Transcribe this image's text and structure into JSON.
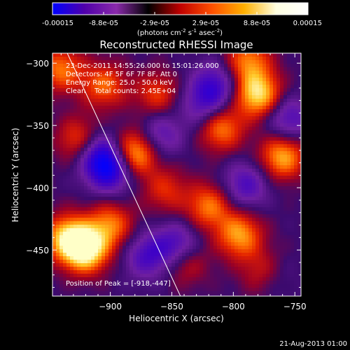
{
  "chart_data": {
    "type": "heatmap",
    "title": "Reconstructed RHESSI Image",
    "colorbar": {
      "ticks": [
        "-0.00015",
        "-8.8e-05",
        "-2.9e-05",
        "2.9e-05",
        "8.8e-05",
        "0.00015"
      ],
      "range": [
        -0.00015,
        0.00015
      ],
      "colors": [
        "#0000ff",
        "#5000aa",
        "#8a2aaa",
        "#000000",
        "#c00000",
        "#ff5000",
        "#ffb000",
        "#ffffe0",
        "#ffffff"
      ]
    },
    "colorbar_units": {
      "prefix": "(photons cm",
      "sup1": "-2",
      "mid1": " s",
      "sup2": "-1",
      "mid2": " asec",
      "sup3": "-2",
      "suffix": ")"
    },
    "xlabel": "Heliocentric X (arcsec)",
    "ylabel": "Heliocentric Y (arcsec)",
    "xlim": [
      -947,
      -745
    ],
    "ylim": [
      -487,
      -292
    ],
    "xticks": [
      {
        "value": -900,
        "label": "−900"
      },
      {
        "value": -850,
        "label": "−850"
      },
      {
        "value": -800,
        "label": "−800"
      },
      {
        "value": -750,
        "label": "−750"
      }
    ],
    "yticks": [
      {
        "value": -300,
        "label": "−300"
      },
      {
        "value": -350,
        "label": "−350"
      },
      {
        "value": -400,
        "label": "−400"
      },
      {
        "value": -450,
        "label": "−450"
      }
    ],
    "limb_line": {
      "x1": -935,
      "y1": -292,
      "x2": -843,
      "y2": -487
    },
    "annotations": [
      "23-Dec-2011 14:55:26.000 to 15:01:26.000",
      "Detectors: 4F 5F 6F 7F 8F, Att 0",
      "Energy Range: 25.0 - 50.0 keV",
      "Clean    Total counts: 2.45E+04"
    ],
    "peak_label": "Position of Peak = [-918,-447]",
    "peak": {
      "x": -918,
      "y": -447
    },
    "blobs": [
      {
        "x": -920,
        "y": -450,
        "v": 1.0
      },
      {
        "x": -935,
        "y": -440,
        "v": 0.8
      },
      {
        "x": -900,
        "y": -430,
        "v": 0.6
      },
      {
        "x": -880,
        "y": -372,
        "v": 0.85
      },
      {
        "x": -925,
        "y": -362,
        "v": 0.55
      },
      {
        "x": -905,
        "y": -318,
        "v": 0.55
      },
      {
        "x": -940,
        "y": -305,
        "v": 0.6
      },
      {
        "x": -862,
        "y": -325,
        "v": 0.45
      },
      {
        "x": -810,
        "y": -352,
        "v": 0.65
      },
      {
        "x": -780,
        "y": -325,
        "v": 0.9
      },
      {
        "x": -788,
        "y": -298,
        "v": 0.6
      },
      {
        "x": -760,
        "y": -375,
        "v": 0.75
      },
      {
        "x": -820,
        "y": -415,
        "v": 0.6
      },
      {
        "x": -795,
        "y": -438,
        "v": 0.7
      },
      {
        "x": -840,
        "y": -458,
        "v": 0.55
      },
      {
        "x": -775,
        "y": -468,
        "v": 0.6
      },
      {
        "x": -855,
        "y": -402,
        "v": 0.4
      },
      {
        "x": -900,
        "y": -385,
        "v": -0.8
      },
      {
        "x": -910,
        "y": -372,
        "v": -0.6
      },
      {
        "x": -845,
        "y": -448,
        "v": -0.7
      },
      {
        "x": -815,
        "y": -318,
        "v": -0.55
      },
      {
        "x": -770,
        "y": -470,
        "v": -0.4
      },
      {
        "x": -790,
        "y": -398,
        "v": -0.5
      },
      {
        "x": -755,
        "y": -345,
        "v": -0.5
      },
      {
        "x": -870,
        "y": -455,
        "v": -0.5
      },
      {
        "x": -860,
        "y": -358,
        "v": -0.45
      },
      {
        "x": -825,
        "y": -335,
        "v": -0.4
      }
    ]
  },
  "footer": {
    "date": "21-Aug-2013 01:00"
  }
}
